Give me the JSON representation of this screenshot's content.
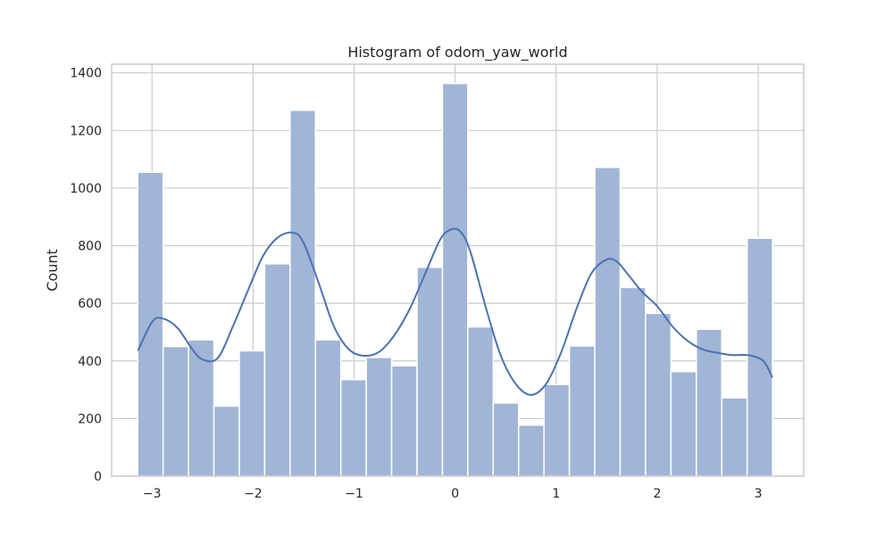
{
  "chart_data": {
    "type": "bar",
    "title": "Histogram of odom_yaw_world",
    "xlabel": "",
    "ylabel": "Count",
    "xlim": [
      -3.4,
      3.45
    ],
    "ylim": [
      0,
      1430
    ],
    "xticks": [
      -3,
      -2,
      -1,
      0,
      1,
      2,
      3
    ],
    "xtick_labels": [
      "−3",
      "−2",
      "−1",
      "0",
      "1",
      "2",
      "3"
    ],
    "yticks": [
      0,
      200,
      400,
      600,
      800,
      1000,
      1200,
      1400
    ],
    "ytick_labels": [
      "0",
      "200",
      "400",
      "600",
      "800",
      "1000",
      "1200",
      "1400"
    ],
    "grid": true,
    "bins": {
      "edges": [
        -3.1416,
        -2.8903,
        -2.6389,
        -2.3876,
        -2.1363,
        -1.885,
        -1.6336,
        -1.3823,
        -1.131,
        -0.8796,
        -0.6283,
        -0.377,
        -0.1257,
        0.1257,
        0.377,
        0.6283,
        0.8796,
        1.131,
        1.3823,
        1.6336,
        1.885,
        2.1363,
        2.3876,
        2.6389,
        2.8903,
        3.1416
      ],
      "counts": [
        1055,
        450,
        473,
        243,
        435,
        737,
        1270,
        473,
        335,
        412,
        383,
        725,
        1363,
        518,
        254,
        177,
        318,
        452,
        1072,
        655,
        565,
        363,
        510,
        272,
        826
      ]
    },
    "kde": {
      "x": [
        -3.14,
        -3.0,
        -2.9,
        -2.75,
        -2.6,
        -2.5,
        -2.35,
        -2.2,
        -2.05,
        -1.9,
        -1.75,
        -1.6,
        -1.5,
        -1.35,
        -1.2,
        -1.05,
        -0.9,
        -0.75,
        -0.6,
        -0.45,
        -0.3,
        -0.15,
        -0.05,
        0.05,
        0.15,
        0.3,
        0.45,
        0.6,
        0.75,
        0.9,
        1.05,
        1.2,
        1.35,
        1.5,
        1.6,
        1.7,
        1.85,
        2.0,
        2.15,
        2.3,
        2.45,
        2.6,
        2.75,
        2.9,
        3.05,
        3.14
      ],
      "y": [
        435,
        535,
        548,
        515,
        440,
        405,
        410,
        520,
        645,
        765,
        830,
        845,
        810,
        670,
        520,
        440,
        418,
        432,
        490,
        580,
        700,
        820,
        855,
        850,
        780,
        590,
        420,
        320,
        282,
        320,
        430,
        580,
        705,
        752,
        745,
        705,
        640,
        590,
        520,
        470,
        440,
        428,
        420,
        420,
        400,
        342
      ]
    },
    "colors": {
      "bar_fill": "#a1b5d6",
      "bar_edge": "#ffffff",
      "kde_line": "#4c72b0",
      "grid": "#cccccc",
      "frame": "#cccccc"
    }
  }
}
